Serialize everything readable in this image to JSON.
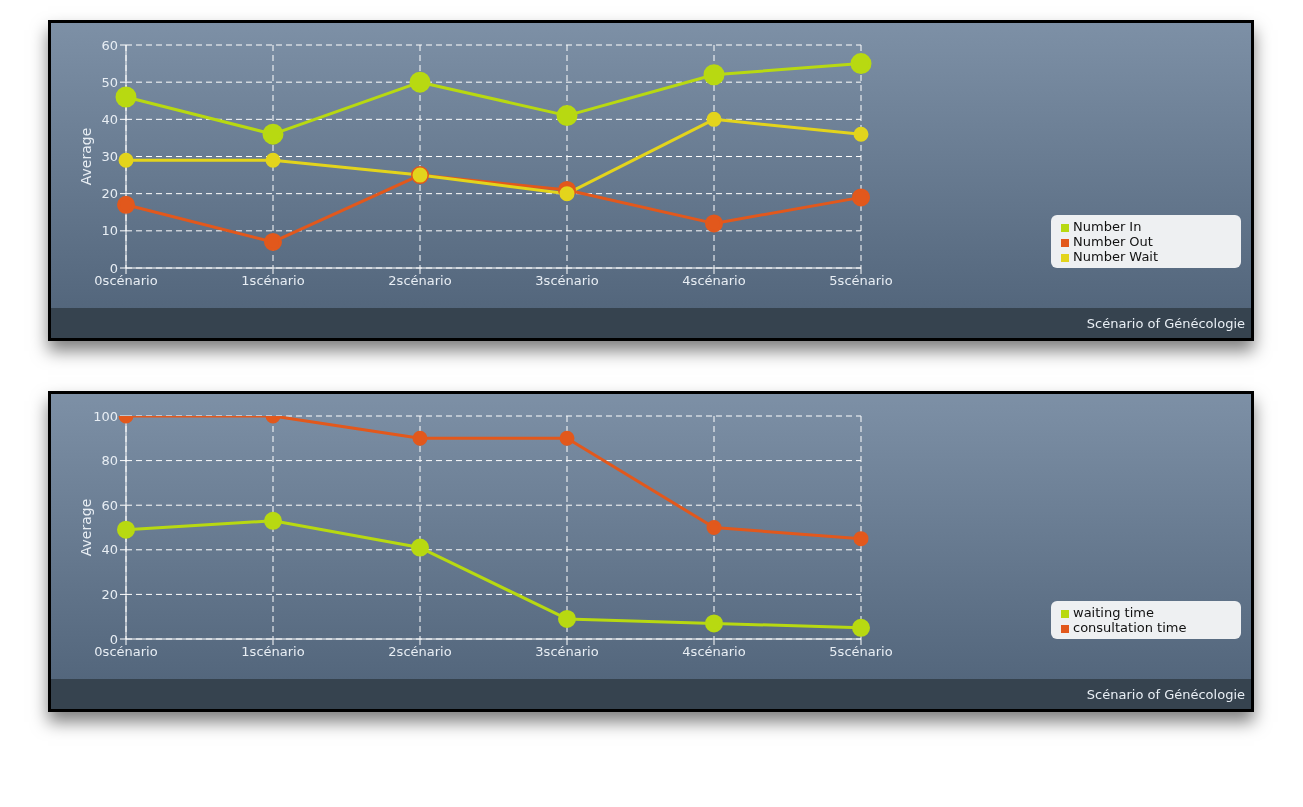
{
  "chart_data": [
    {
      "type": "line",
      "categories": [
        "0scénario",
        "1scénario",
        "2scénario",
        "3scénario",
        "4scénario",
        "5scénario"
      ],
      "series": [
        {
          "name": "Number In",
          "color": "#b8d911",
          "values": [
            46,
            36,
            50,
            41,
            52,
            55
          ]
        },
        {
          "name": "Number Out",
          "color": "#e2581c",
          "values": [
            17,
            7,
            25,
            21,
            12,
            19
          ]
        },
        {
          "name": "Number Wait",
          "color": "#e3d41c",
          "values": [
            29,
            29,
            25,
            20,
            40,
            36
          ]
        }
      ],
      "ylabel": "Average",
      "ylim": [
        0,
        60
      ],
      "yticks": [
        0,
        10,
        20,
        30,
        40,
        50,
        60
      ],
      "grid": true,
      "legend": "bottom right",
      "marker": "circle",
      "line_style": "solid",
      "annotations": [
        "Scénario of Génécologie"
      ]
    },
    {
      "type": "line",
      "categories": [
        "0scénario",
        "1scénario",
        "2scénario",
        "3scénario",
        "4scénario",
        "5scénario"
      ],
      "series": [
        {
          "name": "waiting time",
          "color": "#b8d911",
          "values": [
            49,
            53,
            41,
            9,
            7,
            5
          ]
        },
        {
          "name": "consultation time",
          "color": "#e2581c",
          "values": [
            100,
            100,
            90,
            90,
            50,
            45
          ]
        }
      ],
      "ylabel": "Average",
      "ylim": [
        0,
        100
      ],
      "yticks": [
        0,
        20,
        40,
        60,
        80,
        100
      ],
      "grid": true,
      "legend": "bottom right",
      "marker": "circle",
      "line_style": "solid",
      "annotations": [
        "Scénario of Génécologie"
      ]
    }
  ]
}
